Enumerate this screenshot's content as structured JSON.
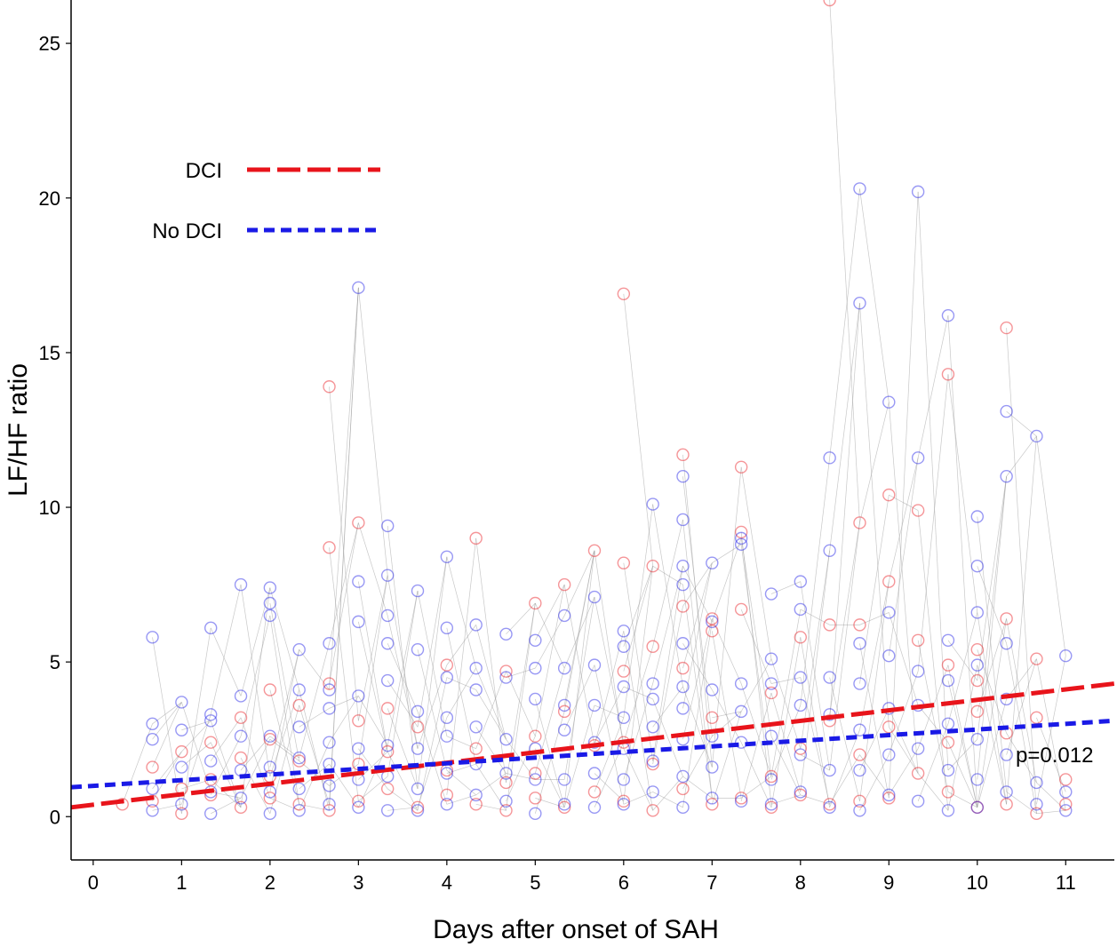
{
  "chart_data": {
    "type": "scatter",
    "title": "",
    "xlabel": "Days after onset of SAH",
    "ylabel": "LF/HF ratio",
    "xlim": [
      -0.25,
      11.55
    ],
    "ylim": [
      -1.4,
      26.4
    ],
    "x_ticks": [
      0,
      1,
      2,
      3,
      4,
      5,
      6,
      7,
      8,
      9,
      10,
      11
    ],
    "y_ticks": [
      0,
      5,
      10,
      15,
      20,
      25
    ],
    "grid": false,
    "legend_position": "top-left",
    "annotation": "p=0.012",
    "colors": {
      "dci": "#e8141b",
      "no_dci": "#1a1ae6",
      "connector": "#9a9a9a"
    },
    "series": [
      {
        "name": "DCI",
        "line_style": "long-dash",
        "trend": {
          "x": [
            -0.25,
            11.55
          ],
          "y": [
            0.3,
            4.3
          ]
        },
        "points": [
          [
            0.33,
            0.4
          ],
          [
            0.67,
            1.6
          ],
          [
            0.67,
            0.5
          ],
          [
            1,
            2.1
          ],
          [
            1,
            0.1
          ],
          [
            1,
            0.9
          ],
          [
            1.33,
            2.4
          ],
          [
            1.33,
            0.7
          ],
          [
            1.33,
            1.2
          ],
          [
            1.67,
            3.2
          ],
          [
            1.67,
            0.3
          ],
          [
            1.67,
            1.9
          ],
          [
            2,
            4.1
          ],
          [
            2,
            0.6
          ],
          [
            2,
            1.3
          ],
          [
            2,
            2.5
          ],
          [
            2.33,
            3.6
          ],
          [
            2.33,
            0.4
          ],
          [
            2.33,
            1.8
          ],
          [
            2.67,
            13.9
          ],
          [
            2.67,
            8.7
          ],
          [
            2.67,
            0.2
          ],
          [
            2.67,
            4.3
          ],
          [
            3,
            9.5
          ],
          [
            3,
            3.1
          ],
          [
            3,
            0.5
          ],
          [
            3,
            1.7
          ],
          [
            3.33,
            3.5
          ],
          [
            3.33,
            0.9
          ],
          [
            3.33,
            2.1
          ],
          [
            3.67,
            2.9
          ],
          [
            3.67,
            0.3
          ],
          [
            4,
            4.9
          ],
          [
            4,
            0.7
          ],
          [
            4,
            1.5
          ],
          [
            4.33,
            9.0
          ],
          [
            4.33,
            2.2
          ],
          [
            4.33,
            0.4
          ],
          [
            4.67,
            4.7
          ],
          [
            4.67,
            0.2
          ],
          [
            4.67,
            1.1
          ],
          [
            5,
            6.9
          ],
          [
            5,
            2.6
          ],
          [
            5,
            0.6
          ],
          [
            5,
            1.4
          ],
          [
            5.33,
            7.5
          ],
          [
            5.33,
            3.4
          ],
          [
            5.33,
            0.3
          ],
          [
            5.67,
            8.6
          ],
          [
            5.67,
            2.3
          ],
          [
            5.67,
            0.8
          ],
          [
            6,
            16.9
          ],
          [
            6,
            8.2
          ],
          [
            6,
            4.7
          ],
          [
            6,
            0.5
          ],
          [
            6,
            2.4
          ],
          [
            6.33,
            8.1
          ],
          [
            6.33,
            5.5
          ],
          [
            6.33,
            1.7
          ],
          [
            6.33,
            0.2
          ],
          [
            6.67,
            11.7
          ],
          [
            6.67,
            6.8
          ],
          [
            6.67,
            4.8
          ],
          [
            6.67,
            0.9
          ],
          [
            7,
            6.4
          ],
          [
            7,
            6.0
          ],
          [
            7,
            3.2
          ],
          [
            7,
            0.4
          ],
          [
            7.33,
            11.3
          ],
          [
            7.33,
            9.2
          ],
          [
            7.33,
            6.7
          ],
          [
            7.33,
            0.6
          ],
          [
            7.67,
            4.0
          ],
          [
            7.67,
            1.3
          ],
          [
            7.67,
            0.3
          ],
          [
            8,
            5.8
          ],
          [
            8,
            2.2
          ],
          [
            8,
            0.7
          ],
          [
            8.33,
            26.4
          ],
          [
            8.33,
            6.2
          ],
          [
            8.33,
            3.1
          ],
          [
            8.33,
            0.4
          ],
          [
            8.67,
            9.5
          ],
          [
            8.67,
            6.2
          ],
          [
            8.67,
            2.0
          ],
          [
            8.67,
            0.5
          ],
          [
            9,
            10.4
          ],
          [
            9,
            7.6
          ],
          [
            9,
            2.9
          ],
          [
            9,
            0.6
          ],
          [
            9.33,
            9.9
          ],
          [
            9.33,
            5.7
          ],
          [
            9.33,
            1.4
          ],
          [
            9.67,
            14.3
          ],
          [
            9.67,
            4.9
          ],
          [
            9.67,
            2.4
          ],
          [
            9.67,
            0.8
          ],
          [
            10,
            5.4
          ],
          [
            10,
            4.4
          ],
          [
            10,
            3.4
          ],
          [
            10,
            0.3
          ],
          [
            10.33,
            15.8
          ],
          [
            10.33,
            6.4
          ],
          [
            10.33,
            2.7
          ],
          [
            10.33,
            0.4
          ],
          [
            10.67,
            5.1
          ],
          [
            10.67,
            3.2
          ],
          [
            10.67,
            0.1
          ],
          [
            11,
            1.2
          ],
          [
            11,
            0.4
          ]
        ]
      },
      {
        "name": "No DCI",
        "line_style": "short-dash",
        "trend": {
          "x": [
            -0.25,
            11.55
          ],
          "y": [
            0.95,
            3.1
          ]
        },
        "points": [
          [
            0.67,
            5.8
          ],
          [
            0.67,
            3.0
          ],
          [
            0.67,
            2.5
          ],
          [
            0.67,
            0.9
          ],
          [
            0.67,
            0.2
          ],
          [
            1,
            3.7
          ],
          [
            1,
            2.8
          ],
          [
            1,
            1.6
          ],
          [
            1,
            0.4
          ],
          [
            1.33,
            6.1
          ],
          [
            1.33,
            3.3
          ],
          [
            1.33,
            3.1
          ],
          [
            1.33,
            1.8
          ],
          [
            1.33,
            0.8
          ],
          [
            1.33,
            0.1
          ],
          [
            1.67,
            7.5
          ],
          [
            1.67,
            3.9
          ],
          [
            1.67,
            2.6
          ],
          [
            1.67,
            1.5
          ],
          [
            1.67,
            0.6
          ],
          [
            2,
            7.4
          ],
          [
            2,
            6.9
          ],
          [
            2,
            6.5
          ],
          [
            2,
            2.6
          ],
          [
            2,
            1.6
          ],
          [
            2,
            0.8
          ],
          [
            2,
            0.1
          ],
          [
            2.33,
            5.4
          ],
          [
            2.33,
            4.1
          ],
          [
            2.33,
            2.9
          ],
          [
            2.33,
            1.9
          ],
          [
            2.33,
            0.9
          ],
          [
            2.33,
            0.2
          ],
          [
            2.67,
            5.6
          ],
          [
            2.67,
            4.1
          ],
          [
            2.67,
            3.5
          ],
          [
            2.67,
            2.4
          ],
          [
            2.67,
            1.7
          ],
          [
            2.67,
            1.0
          ],
          [
            2.67,
            0.4
          ],
          [
            3,
            17.1
          ],
          [
            3,
            7.6
          ],
          [
            3,
            6.3
          ],
          [
            3,
            3.9
          ],
          [
            3,
            2.2
          ],
          [
            3,
            1.2
          ],
          [
            3,
            0.3
          ],
          [
            3.33,
            9.4
          ],
          [
            3.33,
            7.8
          ],
          [
            3.33,
            6.5
          ],
          [
            3.33,
            5.6
          ],
          [
            3.33,
            4.4
          ],
          [
            3.33,
            2.3
          ],
          [
            3.33,
            1.3
          ],
          [
            3.33,
            0.2
          ],
          [
            3.67,
            7.3
          ],
          [
            3.67,
            5.4
          ],
          [
            3.67,
            3.4
          ],
          [
            3.67,
            2.2
          ],
          [
            3.67,
            0.9
          ],
          [
            3.67,
            0.2
          ],
          [
            4,
            8.4
          ],
          [
            4,
            6.1
          ],
          [
            4,
            4.5
          ],
          [
            4,
            3.2
          ],
          [
            4,
            2.6
          ],
          [
            4,
            1.4
          ],
          [
            4,
            0.4
          ],
          [
            4.33,
            6.2
          ],
          [
            4.33,
            4.8
          ],
          [
            4.33,
            4.1
          ],
          [
            4.33,
            2.9
          ],
          [
            4.33,
            1.7
          ],
          [
            4.33,
            0.7
          ],
          [
            4.67,
            5.9
          ],
          [
            4.67,
            4.5
          ],
          [
            4.67,
            2.5
          ],
          [
            4.67,
            1.4
          ],
          [
            4.67,
            0.5
          ],
          [
            5,
            5.7
          ],
          [
            5,
            4.8
          ],
          [
            5,
            3.8
          ],
          [
            5,
            2.2
          ],
          [
            5,
            1.2
          ],
          [
            5,
            0.1
          ],
          [
            5.33,
            6.5
          ],
          [
            5.33,
            4.8
          ],
          [
            5.33,
            3.6
          ],
          [
            5.33,
            2.8
          ],
          [
            5.33,
            1.2
          ],
          [
            5.33,
            0.4
          ],
          [
            5.67,
            7.1
          ],
          [
            5.67,
            4.9
          ],
          [
            5.67,
            3.6
          ],
          [
            5.67,
            2.4
          ],
          [
            5.67,
            1.4
          ],
          [
            5.67,
            0.3
          ],
          [
            6,
            6.0
          ],
          [
            6,
            5.5
          ],
          [
            6,
            4.2
          ],
          [
            6,
            3.2
          ],
          [
            6,
            2.2
          ],
          [
            6,
            1.2
          ],
          [
            6,
            0.4
          ],
          [
            6.33,
            10.1
          ],
          [
            6.33,
            4.3
          ],
          [
            6.33,
            3.8
          ],
          [
            6.33,
            2.9
          ],
          [
            6.33,
            1.8
          ],
          [
            6.33,
            0.8
          ],
          [
            6.67,
            11.0
          ],
          [
            6.67,
            9.6
          ],
          [
            6.67,
            8.1
          ],
          [
            6.67,
            7.5
          ],
          [
            6.67,
            5.6
          ],
          [
            6.67,
            4.2
          ],
          [
            6.67,
            3.5
          ],
          [
            6.67,
            2.5
          ],
          [
            6.67,
            1.3
          ],
          [
            6.67,
            0.3
          ],
          [
            7,
            8.2
          ],
          [
            7,
            6.3
          ],
          [
            7,
            4.1
          ],
          [
            7,
            2.6
          ],
          [
            7,
            1.6
          ],
          [
            7,
            0.6
          ],
          [
            7.33,
            9.0
          ],
          [
            7.33,
            8.8
          ],
          [
            7.33,
            4.3
          ],
          [
            7.33,
            3.4
          ],
          [
            7.33,
            2.4
          ],
          [
            7.33,
            0.5
          ],
          [
            7.67,
            7.2
          ],
          [
            7.67,
            5.1
          ],
          [
            7.67,
            4.3
          ],
          [
            7.67,
            2.6
          ],
          [
            7.67,
            1.2
          ],
          [
            7.67,
            0.4
          ],
          [
            8,
            7.6
          ],
          [
            8,
            6.7
          ],
          [
            8,
            4.5
          ],
          [
            8,
            3.6
          ],
          [
            8,
            2.0
          ],
          [
            8,
            0.8
          ],
          [
            8.33,
            11.6
          ],
          [
            8.33,
            8.6
          ],
          [
            8.33,
            4.5
          ],
          [
            8.33,
            3.3
          ],
          [
            8.33,
            1.5
          ],
          [
            8.33,
            0.3
          ],
          [
            8.67,
            20.3
          ],
          [
            8.67,
            16.6
          ],
          [
            8.67,
            5.6
          ],
          [
            8.67,
            4.3
          ],
          [
            8.67,
            2.8
          ],
          [
            8.67,
            1.5
          ],
          [
            8.67,
            0.2
          ],
          [
            9,
            13.4
          ],
          [
            9,
            6.6
          ],
          [
            9,
            5.2
          ],
          [
            9,
            3.5
          ],
          [
            9,
            2.0
          ],
          [
            9,
            0.7
          ],
          [
            9.33,
            20.2
          ],
          [
            9.33,
            11.6
          ],
          [
            9.33,
            4.7
          ],
          [
            9.33,
            3.6
          ],
          [
            9.33,
            2.2
          ],
          [
            9.33,
            0.5
          ],
          [
            9.67,
            16.2
          ],
          [
            9.67,
            5.7
          ],
          [
            9.67,
            4.4
          ],
          [
            9.67,
            3.0
          ],
          [
            9.67,
            1.5
          ],
          [
            9.67,
            0.2
          ],
          [
            10,
            9.7
          ],
          [
            10,
            8.1
          ],
          [
            10,
            6.6
          ],
          [
            10,
            4.9
          ],
          [
            10,
            2.5
          ],
          [
            10,
            1.2
          ],
          [
            10,
            0.3
          ],
          [
            10.33,
            13.1
          ],
          [
            10.33,
            11.0
          ],
          [
            10.33,
            5.6
          ],
          [
            10.33,
            3.8
          ],
          [
            10.33,
            2.0
          ],
          [
            10.33,
            0.8
          ],
          [
            10.67,
            12.3
          ],
          [
            10.67,
            1.1
          ],
          [
            10.67,
            0.4
          ],
          [
            11,
            5.2
          ],
          [
            11,
            0.8
          ],
          [
            11,
            0.2
          ]
        ]
      }
    ]
  }
}
